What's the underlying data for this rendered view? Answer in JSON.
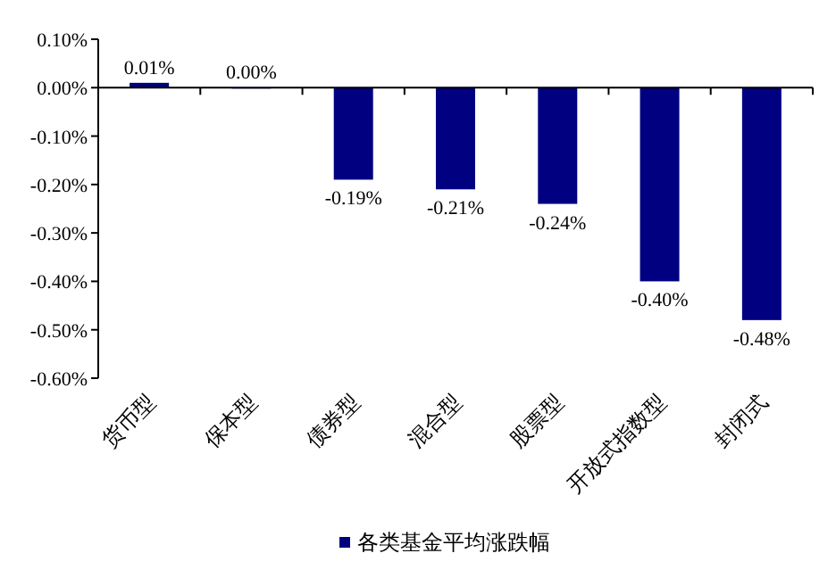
{
  "chart_data": {
    "type": "bar",
    "categories": [
      "货币型",
      "保本型",
      "债券型",
      "混合型",
      "股票型",
      "开放式指数型",
      "封闭式"
    ],
    "series": [
      {
        "name": "各类基金平均涨跌幅",
        "color": "#000080",
        "values": [
          0.01,
          0.0,
          -0.19,
          -0.21,
          -0.24,
          -0.4,
          -0.48
        ],
        "value_labels": [
          "0.01%",
          "0.00%",
          "-0.19%",
          "-0.21%",
          "-0.24%",
          "-0.40%",
          "-0.48%"
        ]
      }
    ],
    "ylim": [
      -0.6,
      0.1
    ],
    "yticks": [
      {
        "value": 0.1,
        "label": "0.10%"
      },
      {
        "value": 0,
        "label": "0.00%"
      },
      {
        "value": -0.1,
        "label": "-0.10%"
      },
      {
        "value": -0.2,
        "label": "-0.20%"
      },
      {
        "value": -0.3,
        "label": "-0.30%"
      },
      {
        "value": -0.4,
        "label": "-0.40%"
      },
      {
        "value": -0.5,
        "label": "-0.50%"
      },
      {
        "value": -0.6,
        "label": "-0.60%"
      }
    ],
    "legend": "bottom"
  }
}
